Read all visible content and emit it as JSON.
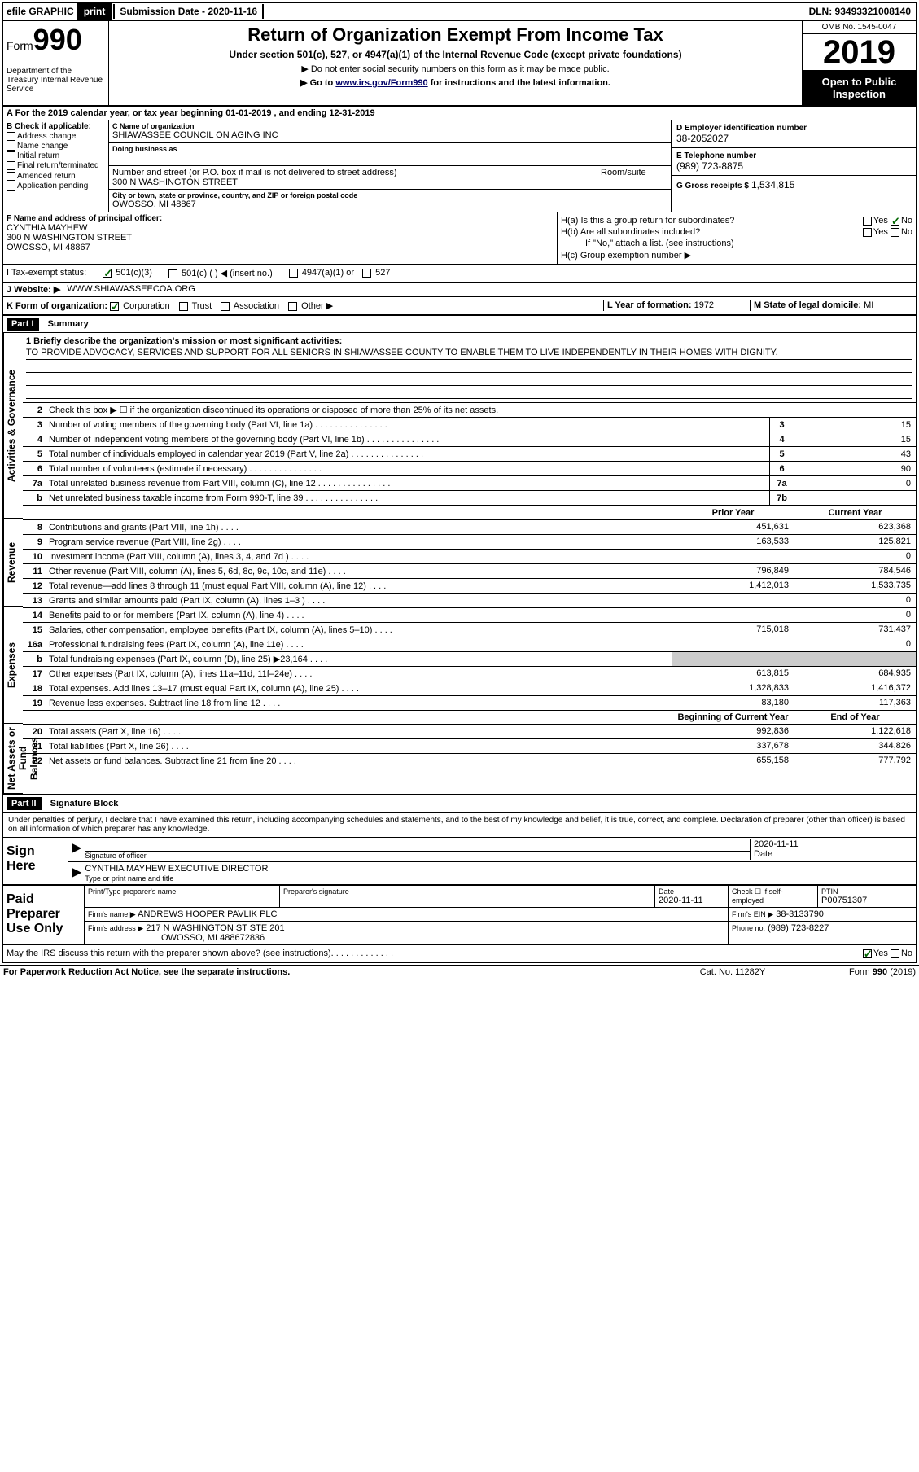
{
  "top_bar": {
    "efile": "efile GRAPHIC",
    "print_btn": "print",
    "sub_date_lbl": "Submission Date - 2020-11-16",
    "dln": "DLN: 93493321008140"
  },
  "header": {
    "form_label": "Form",
    "form_num": "990",
    "dept": "Department of the Treasury Internal Revenue Service",
    "title": "Return of Organization Exempt From Income Tax",
    "sub1": "Under section 501(c), 527, or 4947(a)(1) of the Internal Revenue Code (except private foundations)",
    "sub2": "▶ Do not enter social security numbers on this form as it may be made public.",
    "sub3_pre": "▶ Go to ",
    "sub3_link": "www.irs.gov/Form990",
    "sub3_post": " for instructions and the latest information.",
    "omb": "OMB No. 1545-0047",
    "year": "2019",
    "open_public": "Open to Public Inspection"
  },
  "line_a": "A For the 2019 calendar year, or tax year beginning 01-01-2019    , and ending 12-31-2019",
  "col_b": {
    "header": "B Check if applicable:",
    "opts": [
      "Address change",
      "Name change",
      "Initial return",
      "Final return/terminated",
      "Amended return",
      "Application pending"
    ]
  },
  "col_c": {
    "name_lbl": "C Name of organization",
    "name_val": "SHIAWASSEE COUNCIL ON AGING INC",
    "dba_lbl": "Doing business as",
    "dba_val": "",
    "addr_lbl": "Number and street (or P.O. box if mail is not delivered to street address)",
    "addr_val": "300 N WASHINGTON STREET",
    "room_lbl": "Room/suite",
    "city_lbl": "City or town, state or province, country, and ZIP or foreign postal code",
    "city_val": "OWOSSO, MI  48867"
  },
  "col_d": {
    "ein_lbl": "D Employer identification number",
    "ein_val": "38-2052027",
    "phone_lbl": "E Telephone number",
    "phone_val": "(989) 723-8875",
    "gross_lbl": "G Gross receipts $",
    "gross_val": "1,534,815"
  },
  "row_f": {
    "lbl": "F  Name and address of principal officer:",
    "name": "CYNTHIA MAYHEW",
    "addr1": "300 N WASHINGTON STREET",
    "addr2": "OWOSSO, MI  48867"
  },
  "row_h": {
    "ha": "H(a)  Is this a group return for subordinates?",
    "hb": "H(b)  Are all subordinates included?",
    "hb_note": "If \"No,\" attach a list. (see instructions)",
    "hc": "H(c)  Group exemption number ▶"
  },
  "row_i": {
    "lbl": "I   Tax-exempt status:",
    "opt1": "501(c)(3)",
    "opt2": "501(c) (   ) ◀ (insert no.)",
    "opt3": "4947(a)(1) or",
    "opt4": "527"
  },
  "row_j": {
    "lbl": "J   Website: ▶",
    "val": "WWW.SHIAWASSEECOA.ORG"
  },
  "row_k": {
    "k_lbl": "K Form of organization:",
    "k_opts": [
      "Corporation",
      "Trust",
      "Association",
      "Other ▶"
    ],
    "l_lbl": "L Year of formation:",
    "l_val": "1972",
    "m_lbl": "M State of legal domicile:",
    "m_val": "MI"
  },
  "part1": {
    "header": "Part I",
    "title": "Summary",
    "side_labels": [
      "Activities & Governance",
      "Revenue",
      "Expenses",
      "Net Assets or Fund Balances"
    ],
    "line1_lbl": "1  Briefly describe the organization's mission or most significant activities:",
    "mission": "TO PROVIDE ADVOCACY, SERVICES AND SUPPORT FOR ALL SENIORS IN SHIAWASSEE COUNTY TO ENABLE THEM TO LIVE INDEPENDENTLY IN THEIR HOMES WITH DIGNITY.",
    "line2": "Check this box ▶ ☐  if the organization discontinued its operations or disposed of more than 25% of its net assets.",
    "lines_single": [
      {
        "n": "3",
        "d": "Number of voting members of the governing body (Part VI, line 1a)",
        "box": "3",
        "v": "15"
      },
      {
        "n": "4",
        "d": "Number of independent voting members of the governing body (Part VI, line 1b)",
        "box": "4",
        "v": "15"
      },
      {
        "n": "5",
        "d": "Total number of individuals employed in calendar year 2019 (Part V, line 2a)",
        "box": "5",
        "v": "43"
      },
      {
        "n": "6",
        "d": "Total number of volunteers (estimate if necessary)",
        "box": "6",
        "v": "90"
      },
      {
        "n": "7a",
        "d": "Total unrelated business revenue from Part VIII, column (C), line 12",
        "box": "7a",
        "v": "0"
      },
      {
        "n": "b",
        "d": "Net unrelated business taxable income from Form 990-T, line 39",
        "box": "7b",
        "v": ""
      }
    ],
    "year_hdr_prior": "Prior Year",
    "year_hdr_current": "Current Year",
    "revenue_lines": [
      {
        "n": "8",
        "d": "Contributions and grants (Part VIII, line 1h)",
        "p": "451,631",
        "c": "623,368"
      },
      {
        "n": "9",
        "d": "Program service revenue (Part VIII, line 2g)",
        "p": "163,533",
        "c": "125,821"
      },
      {
        "n": "10",
        "d": "Investment income (Part VIII, column (A), lines 3, 4, and 7d )",
        "p": "",
        "c": "0"
      },
      {
        "n": "11",
        "d": "Other revenue (Part VIII, column (A), lines 5, 6d, 8c, 9c, 10c, and 11e)",
        "p": "796,849",
        "c": "784,546"
      },
      {
        "n": "12",
        "d": "Total revenue—add lines 8 through 11 (must equal Part VIII, column (A), line 12)",
        "p": "1,412,013",
        "c": "1,533,735"
      }
    ],
    "expense_lines": [
      {
        "n": "13",
        "d": "Grants and similar amounts paid (Part IX, column (A), lines 1–3 )",
        "p": "",
        "c": "0"
      },
      {
        "n": "14",
        "d": "Benefits paid to or for members (Part IX, column (A), line 4)",
        "p": "",
        "c": "0"
      },
      {
        "n": "15",
        "d": "Salaries, other compensation, employee benefits (Part IX, column (A), lines 5–10)",
        "p": "715,018",
        "c": "731,437"
      },
      {
        "n": "16a",
        "d": "Professional fundraising fees (Part IX, column (A), line 11e)",
        "p": "",
        "c": "0"
      },
      {
        "n": "b",
        "d": "Total fundraising expenses (Part IX, column (D), line 25) ▶23,164",
        "p": "SHADED",
        "c": "SHADED"
      },
      {
        "n": "17",
        "d": "Other expenses (Part IX, column (A), lines 11a–11d, 11f–24e)",
        "p": "613,815",
        "c": "684,935"
      },
      {
        "n": "18",
        "d": "Total expenses. Add lines 13–17 (must equal Part IX, column (A), line 25)",
        "p": "1,328,833",
        "c": "1,416,372"
      },
      {
        "n": "19",
        "d": "Revenue less expenses. Subtract line 18 from line 12",
        "p": "83,180",
        "c": "117,363"
      }
    ],
    "balance_hdr_begin": "Beginning of Current Year",
    "balance_hdr_end": "End of Year",
    "balance_lines": [
      {
        "n": "20",
        "d": "Total assets (Part X, line 16)",
        "p": "992,836",
        "c": "1,122,618"
      },
      {
        "n": "21",
        "d": "Total liabilities (Part X, line 26)",
        "p": "337,678",
        "c": "344,826"
      },
      {
        "n": "22",
        "d": "Net assets or fund balances. Subtract line 21 from line 20",
        "p": "655,158",
        "c": "777,792"
      }
    ]
  },
  "part2": {
    "header": "Part II",
    "title": "Signature Block",
    "declaration": "Under penalties of perjury, I declare that I have examined this return, including accompanying schedules and statements, and to the best of my knowledge and belief, it is true, correct, and complete. Declaration of preparer (other than officer) is based on all information of which preparer has any knowledge.",
    "sign_here": "Sign Here",
    "sig_officer_lbl": "Signature of officer",
    "sig_date": "2020-11-11",
    "sig_date_lbl": "Date",
    "sig_name": "CYNTHIA MAYHEW EXECUTIVE DIRECTOR",
    "sig_name_lbl": "Type or print name and title",
    "paid_prep": "Paid Preparer Use Only",
    "prep_name_lbl": "Print/Type preparer's name",
    "prep_sig_lbl": "Preparer's signature",
    "prep_date_lbl": "Date",
    "prep_date": "2020-11-11",
    "prep_check_lbl": "Check ☐ if self-employed",
    "ptin_lbl": "PTIN",
    "ptin": "P00751307",
    "firm_name_lbl": "Firm's name     ▶",
    "firm_name": "ANDREWS HOOPER PAVLIK PLC",
    "firm_ein_lbl": "Firm's EIN ▶",
    "firm_ein": "38-3133790",
    "firm_addr_lbl": "Firm's address ▶",
    "firm_addr1": "217 N WASHINGTON ST STE 201",
    "firm_addr2": "OWOSSO, MI  488672836",
    "firm_phone_lbl": "Phone no.",
    "firm_phone": "(989) 723-8227",
    "discuss": "May the IRS discuss this return with the preparer shown above? (see instructions)"
  },
  "footer": {
    "left": "For Paperwork Reduction Act Notice, see the separate instructions.",
    "mid": "Cat. No. 11282Y",
    "right": "Form 990 (2019)"
  }
}
